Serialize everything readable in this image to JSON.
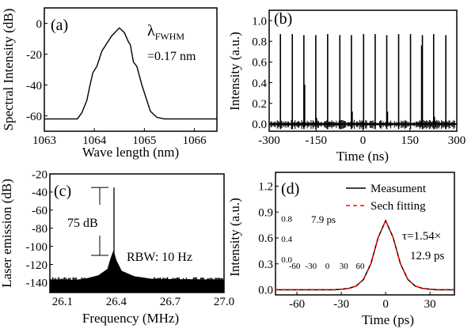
{
  "chart_data": [
    {
      "id": "a",
      "type": "line",
      "panel_label": "(a)",
      "xlabel": "Wave length (nm)",
      "ylabel": "Spectral Intensity (dB)",
      "xlim": [
        1063,
        1066.45
      ],
      "ylim": [
        -70,
        10
      ],
      "xticks": [
        1063,
        1064,
        1065,
        1066
      ],
      "yticks": [
        0,
        -20,
        -40,
        -60
      ],
      "annotation": {
        "symbol": "λ",
        "subscript": "FWHM",
        "value": "=0.17 nm"
      },
      "series": [
        {
          "color": "#000000",
          "x": [
            1063,
            1063.66,
            1063.75,
            1063.85,
            1063.9,
            1063.97,
            1064.05,
            1064.15,
            1064.25,
            1064.35,
            1064.5,
            1064.6,
            1064.68,
            1064.72,
            1064.78,
            1064.85,
            1064.95,
            1065.05,
            1065.12,
            1065.25,
            1065.4,
            1066.45
          ],
          "y": [
            -62,
            -62,
            -58,
            -50,
            -42,
            -32,
            -28,
            -18,
            -13,
            -8,
            -3,
            -6,
            -12,
            -14,
            -25,
            -28,
            -40,
            -50,
            -57,
            -61,
            -62,
            -62
          ]
        }
      ]
    },
    {
      "id": "b",
      "type": "line",
      "panel_label": "(b)",
      "xlabel": "Time (ns)",
      "ylabel": "Intensity (a.u.)",
      "xlim": [
        -300,
        300
      ],
      "ylim": [
        -0.07,
        1.1
      ],
      "xticks": [
        -300,
        -150,
        0,
        150,
        300
      ],
      "yticks": [
        "0.0",
        "0.2",
        "0.4",
        "0.6",
        "0.8",
        "1.0"
      ],
      "pulses": {
        "t": [
          -264,
          -226,
          -189,
          -151,
          -113,
          -74,
          -37,
          2,
          39,
          76,
          114,
          152,
          190,
          226,
          265
        ],
        "height": [
          0.87,
          0.87,
          0.86,
          0.86,
          0.87,
          0.86,
          0.86,
          0.87,
          0.87,
          0.86,
          0.87,
          0.87,
          0.86,
          0.87,
          0.86
        ]
      },
      "secondary_pulses": {
        "t": [
          -187,
          -149,
          -35,
          78,
          188,
          228
        ],
        "height": [
          0.38,
          0.06,
          0.12,
          0.12,
          0.76,
          0.07
        ]
      }
    },
    {
      "id": "c",
      "type": "area",
      "panel_label": "(c)",
      "xlabel": "Frequency (MHz)",
      "ylabel": "Laser emission (dB)",
      "xlim": [
        26.03,
        27.0
      ],
      "ylim": [
        -151,
        -20
      ],
      "xticks": [
        "26.1",
        "26.4",
        "26.7",
        "27.0"
      ],
      "yticks": [
        -20,
        -40,
        -60,
        -80,
        -100,
        -120,
        -140
      ],
      "carrier": {
        "x": 26.387,
        "y": -35
      },
      "envelope": {
        "x": [
          26.03,
          26.2,
          26.3,
          26.35,
          26.37,
          26.385,
          26.4,
          26.43,
          26.5,
          26.6,
          27.0
        ],
        "y": [
          -137,
          -137,
          -132,
          -125,
          -112,
          -104,
          -115,
          -127,
          -133,
          -136,
          -137
        ]
      },
      "snr_label": "75 dB",
      "snr_range": [
        -35,
        -110
      ],
      "rbw_label": "RBW: 10 Hz"
    },
    {
      "id": "d",
      "type": "line",
      "panel_label": "(d)",
      "xlabel": "Time (ps)",
      "ylabel": "Intensity (a.u.)",
      "xlim": [
        -74.5,
        46.5
      ],
      "ylim": [
        -0.06,
        1.36
      ],
      "xticks": [
        -60,
        -30,
        0,
        30
      ],
      "yticks": [
        "0.0",
        "0.3",
        "0.6",
        "0.9",
        "1.2"
      ],
      "legend": [
        "Measument",
        "Sech fitting"
      ],
      "legend_position": "top-right",
      "annotation": [
        "τ=1.54×",
        "12.9 ps"
      ],
      "series": [
        {
          "name": "Measument",
          "color": "#000000",
          "dash": false,
          "x": [
            -75,
            -35,
            -30,
            -25,
            -20,
            -15,
            -10,
            -5,
            0,
            5,
            10,
            15,
            20,
            25,
            30,
            35,
            46
          ],
          "y": [
            0,
            0,
            0.005,
            0.015,
            0.043,
            0.119,
            0.301,
            0.608,
            0.8,
            0.608,
            0.301,
            0.119,
            0.043,
            0.015,
            0.005,
            0,
            0
          ]
        },
        {
          "name": "Sech fitting",
          "color": "#ff0000",
          "dash": true,
          "x": [
            -75,
            -35,
            -30,
            -25,
            -20,
            -15,
            -10,
            -5,
            0,
            5,
            10,
            15,
            20,
            25,
            30,
            35,
            46
          ],
          "y": [
            0,
            0,
            0.005,
            0.015,
            0.043,
            0.119,
            0.301,
            0.608,
            0.8,
            0.608,
            0.301,
            0.119,
            0.043,
            0.015,
            0.005,
            0,
            0
          ]
        }
      ],
      "inset": {
        "xlim": [
          -60,
          60
        ],
        "ylim": [
          0,
          0.9
        ],
        "xticks": [
          -60,
          -30,
          0,
          30,
          60
        ],
        "yticks": [
          "0.0",
          "0.4",
          "0.8"
        ],
        "label": "7.9 ps",
        "x": [
          -60,
          -20,
          -15,
          -10,
          -7,
          -4,
          -2,
          0,
          2,
          4,
          7,
          10,
          15,
          20,
          60
        ],
        "y": [
          0,
          0,
          0.01,
          0.05,
          0.15,
          0.4,
          0.62,
          0.75,
          0.62,
          0.4,
          0.15,
          0.05,
          0.01,
          0,
          0
        ]
      }
    }
  ]
}
